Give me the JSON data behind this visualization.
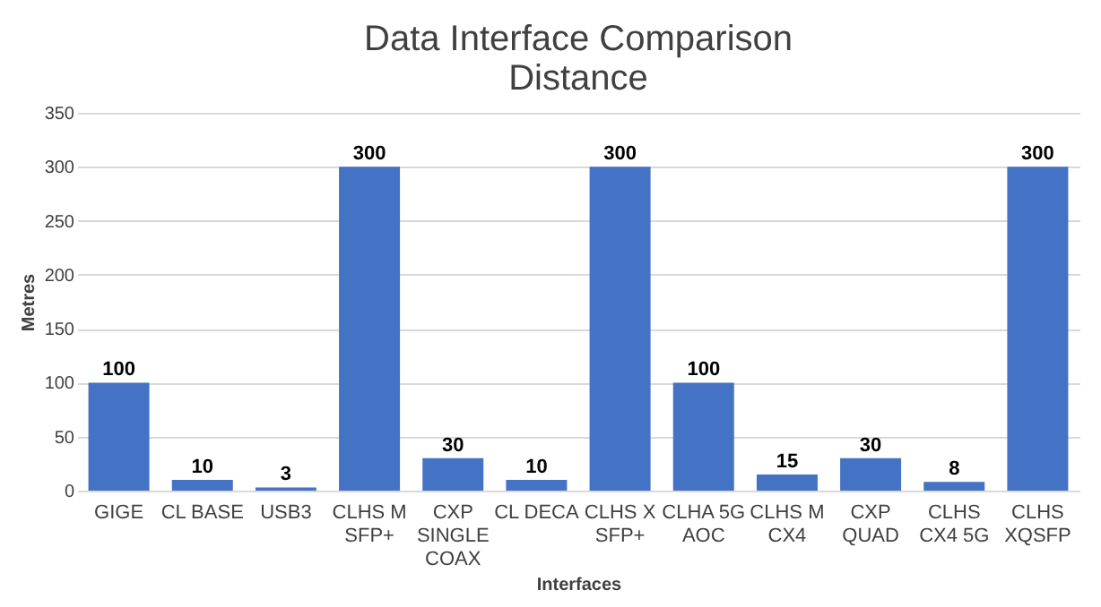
{
  "chart_data": {
    "type": "bar",
    "title": "Data Interface Comparison\nDistance",
    "categories": [
      "GIGE",
      "CL BASE",
      "USB3",
      "CLHS M\nSFP+",
      "CXP\nSINGLE\nCOAX",
      "CL DECA",
      "CLHS X\nSFP+",
      "CLHA 5G\nAOC",
      "CLHS M\nCX4",
      "CXP\nQUAD",
      "CLHS\nCX4 5G",
      "CLHS\nXQSFP"
    ],
    "values": [
      100,
      10,
      3,
      300,
      30,
      10,
      300,
      100,
      15,
      30,
      8,
      300
    ],
    "color": "#4472c4",
    "xlabel": "Interfaces",
    "ylabel": "Metres",
    "ylim": [
      0,
      350
    ],
    "yticks": [
      0,
      50,
      100,
      150,
      200,
      250,
      300,
      350
    ],
    "grid": "y",
    "data_labels": true
  }
}
